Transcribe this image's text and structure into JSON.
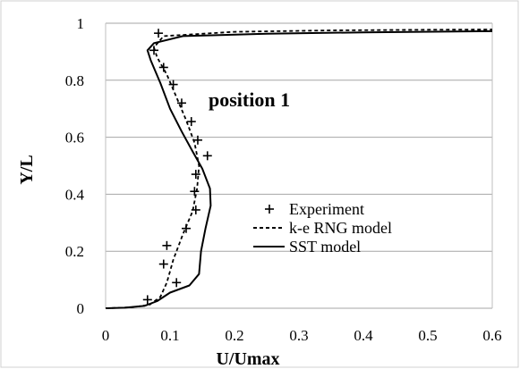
{
  "chart_data": {
    "type": "line",
    "title": "",
    "xlabel": "U/Umax",
    "ylabel": "Y/L",
    "xlim": [
      0,
      0.6
    ],
    "ylim": [
      0,
      1
    ],
    "x_ticks": [
      "0",
      "0.1",
      "0.2",
      "0.3",
      "0.4",
      "0.5",
      "0.6"
    ],
    "y_ticks": [
      "0",
      "0.2",
      "0.4",
      "0.6",
      "0.8",
      "1"
    ],
    "x_tick_values": [
      0,
      0.1,
      0.2,
      0.3,
      0.4,
      0.5,
      0.6
    ],
    "y_tick_values": [
      0,
      0.2,
      0.4,
      0.6,
      0.8,
      1
    ],
    "grid": "horizontal",
    "legend_position": "center-right",
    "annotation": "position 1",
    "series": [
      {
        "name": "Experiment",
        "style": "markers-plus",
        "color": "#000000",
        "points": [
          [
            0.065,
            0.03
          ],
          [
            0.11,
            0.09
          ],
          [
            0.09,
            0.155
          ],
          [
            0.095,
            0.22
          ],
          [
            0.125,
            0.28
          ],
          [
            0.14,
            0.345
          ],
          [
            0.138,
            0.41
          ],
          [
            0.14,
            0.47
          ],
          [
            0.158,
            0.535
          ],
          [
            0.143,
            0.59
          ],
          [
            0.133,
            0.655
          ],
          [
            0.118,
            0.72
          ],
          [
            0.105,
            0.785
          ],
          [
            0.09,
            0.845
          ],
          [
            0.075,
            0.905
          ],
          [
            0.082,
            0.965
          ]
        ]
      },
      {
        "name": "k-e RNG model",
        "style": "dashed",
        "color": "#000000",
        "points": [
          [
            0.0,
            0.0
          ],
          [
            0.04,
            0.003
          ],
          [
            0.068,
            0.012
          ],
          [
            0.085,
            0.04
          ],
          [
            0.095,
            0.09
          ],
          [
            0.105,
            0.17
          ],
          [
            0.12,
            0.26
          ],
          [
            0.135,
            0.34
          ],
          [
            0.142,
            0.42
          ],
          [
            0.145,
            0.5
          ],
          [
            0.138,
            0.58
          ],
          [
            0.125,
            0.66
          ],
          [
            0.11,
            0.74
          ],
          [
            0.095,
            0.82
          ],
          [
            0.08,
            0.88
          ],
          [
            0.075,
            0.915
          ],
          [
            0.09,
            0.955
          ],
          [
            0.2,
            0.97
          ],
          [
            0.35,
            0.975
          ],
          [
            0.5,
            0.977
          ],
          [
            0.6,
            0.978
          ]
        ]
      },
      {
        "name": "SST model",
        "style": "solid",
        "color": "#000000",
        "points": [
          [
            0.0,
            0.0
          ],
          [
            0.03,
            0.002
          ],
          [
            0.06,
            0.008
          ],
          [
            0.08,
            0.025
          ],
          [
            0.1,
            0.055
          ],
          [
            0.13,
            0.08
          ],
          [
            0.145,
            0.12
          ],
          [
            0.148,
            0.2
          ],
          [
            0.155,
            0.28
          ],
          [
            0.163,
            0.36
          ],
          [
            0.162,
            0.42
          ],
          [
            0.15,
            0.49
          ],
          [
            0.135,
            0.55
          ],
          [
            0.118,
            0.62
          ],
          [
            0.1,
            0.7
          ],
          [
            0.085,
            0.79
          ],
          [
            0.07,
            0.87
          ],
          [
            0.065,
            0.905
          ],
          [
            0.075,
            0.93
          ],
          [
            0.12,
            0.955
          ],
          [
            0.25,
            0.963
          ],
          [
            0.4,
            0.968
          ],
          [
            0.6,
            0.972
          ]
        ]
      }
    ]
  }
}
